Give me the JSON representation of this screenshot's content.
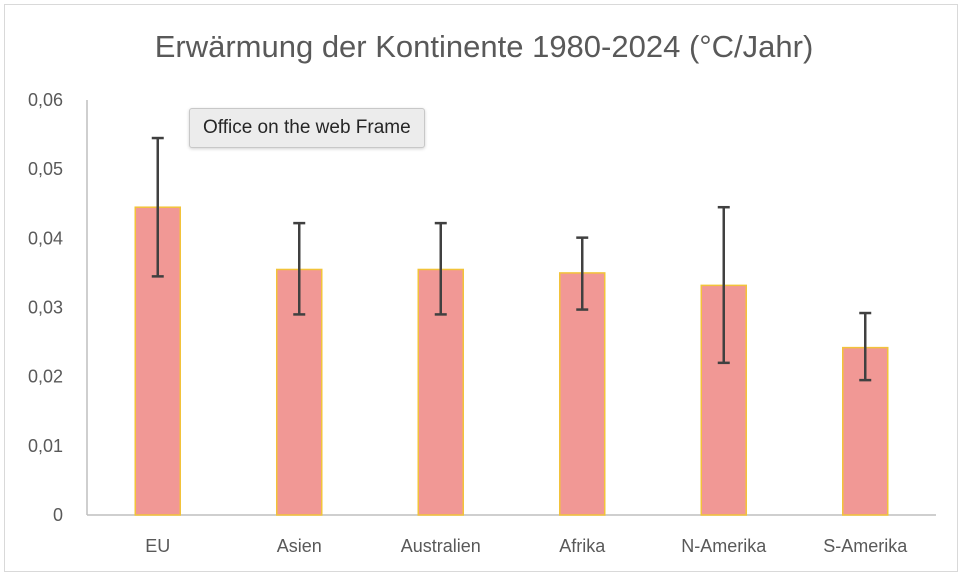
{
  "tooltip": {
    "text": "Office on the web Frame"
  },
  "colors": {
    "bar_fill": "#f19895",
    "bar_stroke": "#f2c33a",
    "error_bar": "#404040",
    "axis": "#bfbfbf",
    "text": "#595959"
  },
  "chart_data": {
    "type": "bar",
    "title": "Erwärmung der Kontinente 1980-2024 (°C/Jahr)",
    "xlabel": "",
    "ylabel": "",
    "categories": [
      "EU",
      "Asien",
      "Australien",
      "Afrika",
      "N-Amerika",
      "S-Amerika"
    ],
    "values": [
      0.0445,
      0.0355,
      0.0355,
      0.035,
      0.0332,
      0.0242
    ],
    "error_low": [
      0.0345,
      0.029,
      0.029,
      0.0297,
      0.022,
      0.0195
    ],
    "error_high": [
      0.0545,
      0.0422,
      0.0422,
      0.0401,
      0.0445,
      0.0292
    ],
    "ylim": [
      0,
      0.06
    ],
    "yticks": [
      "0",
      "0,01",
      "0,02",
      "0,03",
      "0,04",
      "0,05",
      "0,06"
    ],
    "grid": false,
    "legend": "none"
  }
}
